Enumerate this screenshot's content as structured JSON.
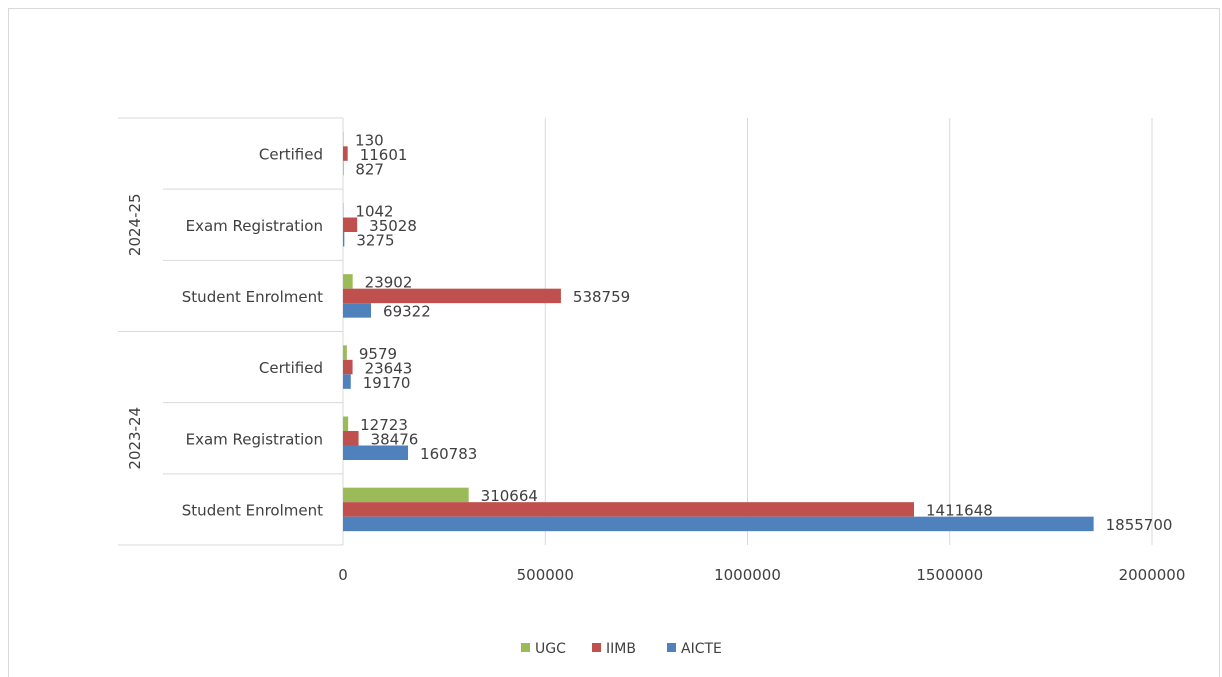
{
  "chart_data": {
    "type": "bar",
    "orientation": "horizontal",
    "xlim": [
      0,
      2000000
    ],
    "x_ticks": [
      "0",
      "500000",
      "1000000",
      "1500000",
      "2000000"
    ],
    "grid": "vertical",
    "legend_position": "bottom",
    "groups": [
      {
        "label": "2024-25",
        "categories": [
          {
            "label": "Certified",
            "values": {
              "UGC": 130,
              "IIMB": 11601,
              "AICTE": 827
            }
          },
          {
            "label": "Exam Registration",
            "values": {
              "UGC": 1042,
              "IIMB": 35028,
              "AICTE": 3275
            }
          },
          {
            "label": "Student Enrolment",
            "values": {
              "UGC": 23902,
              "IIMB": 538759,
              "AICTE": 69322
            }
          }
        ]
      },
      {
        "label": "2023-24",
        "categories": [
          {
            "label": "Certified",
            "values": {
              "UGC": 9579,
              "IIMB": 23643,
              "AICTE": 19170
            }
          },
          {
            "label": "Exam Registration",
            "values": {
              "UGC": 12723,
              "IIMB": 38476,
              "AICTE": 160783
            }
          },
          {
            "label": "Student Enrolment",
            "values": {
              "UGC": 310664,
              "IIMB": 1411648,
              "AICTE": 1855700
            }
          }
        ]
      }
    ],
    "series": [
      {
        "name": "UGC",
        "color": "#9bbb59"
      },
      {
        "name": "IIMB",
        "color": "#c0504d"
      },
      {
        "name": "AICTE",
        "color": "#4f81bd"
      }
    ]
  }
}
